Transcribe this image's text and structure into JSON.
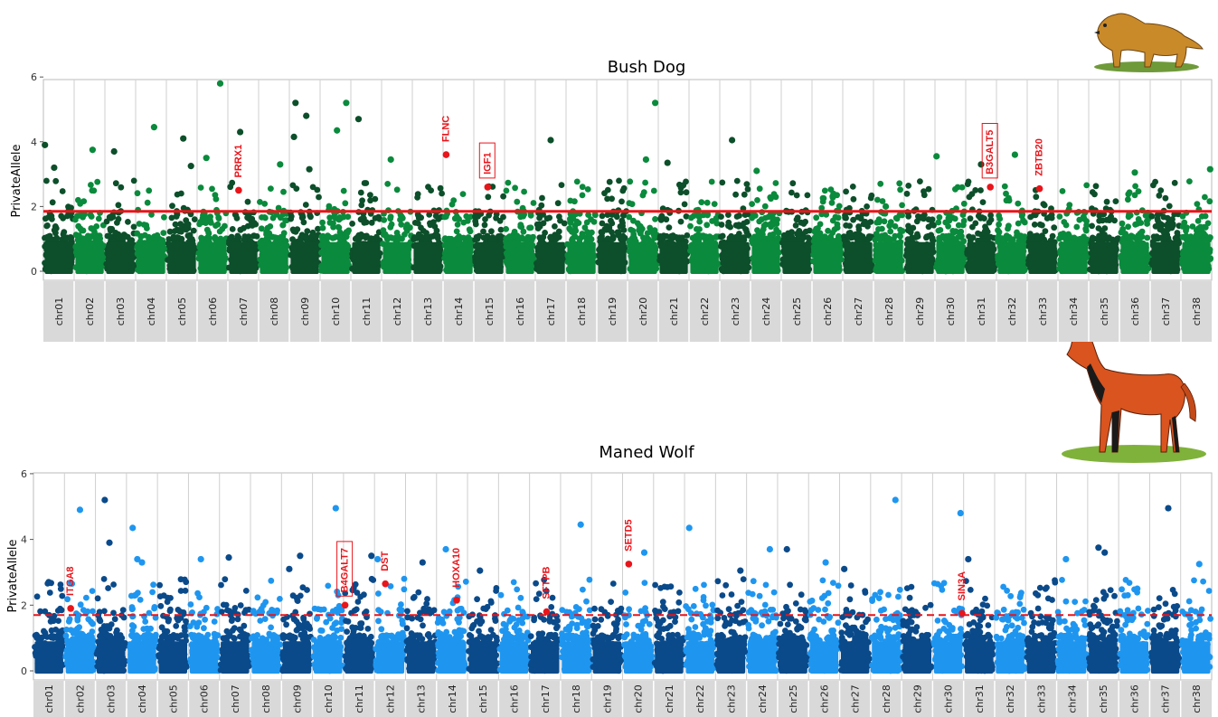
{
  "chart_data": [
    {
      "type": "scatter",
      "title": "Bush Dog",
      "ylabel": "PrivateAllele",
      "y_ticks": [
        "0",
        "2",
        "4",
        "6"
      ],
      "ylim": [
        0,
        6.2
      ],
      "threshold": 1.85,
      "threshold_style": "solid",
      "colors": [
        "#0c4f2a",
        "#0a8a3c"
      ],
      "chromosomes": [
        "chr01",
        "chr02",
        "chr03",
        "chr04",
        "chr05",
        "chr06",
        "chr07",
        "chr08",
        "chr09",
        "chr10",
        "chr11",
        "chr12",
        "chr13",
        "chr14",
        "chr15",
        "chr16",
        "chr17",
        "chr18",
        "chr19",
        "chr20",
        "chr21",
        "chr22",
        "chr23",
        "chr24",
        "chr25",
        "chr26",
        "chr27",
        "chr28",
        "chr29",
        "chr30",
        "chr31",
        "chr32",
        "chr33",
        "chr34",
        "chr35",
        "chr36",
        "chr37",
        "chr38"
      ],
      "top_points": [
        {
          "chr": 1,
          "pos": 0.05,
          "y": 3.9
        },
        {
          "chr": 1,
          "pos": 0.35,
          "y": 3.2
        },
        {
          "chr": 2,
          "pos": 0.6,
          "y": 3.75
        },
        {
          "chr": 3,
          "pos": 0.3,
          "y": 3.7
        },
        {
          "chr": 4,
          "pos": 0.6,
          "y": 4.45
        },
        {
          "chr": 5,
          "pos": 0.55,
          "y": 4.1
        },
        {
          "chr": 5,
          "pos": 0.8,
          "y": 3.25
        },
        {
          "chr": 6,
          "pos": 0.75,
          "y": 5.8
        },
        {
          "chr": 6,
          "pos": 0.3,
          "y": 3.5
        },
        {
          "chr": 7,
          "pos": 0.4,
          "y": 4.3
        },
        {
          "chr": 8,
          "pos": 0.7,
          "y": 3.3
        },
        {
          "chr": 9,
          "pos": 0.15,
          "y": 4.15
        },
        {
          "chr": 9,
          "pos": 0.2,
          "y": 5.2
        },
        {
          "chr": 9,
          "pos": 0.55,
          "y": 4.8
        },
        {
          "chr": 9,
          "pos": 0.65,
          "y": 3.15
        },
        {
          "chr": 10,
          "pos": 0.55,
          "y": 4.35
        },
        {
          "chr": 10,
          "pos": 0.85,
          "y": 5.2
        },
        {
          "chr": 11,
          "pos": 0.25,
          "y": 4.7
        },
        {
          "chr": 12,
          "pos": 0.3,
          "y": 3.45
        },
        {
          "chr": 17,
          "pos": 0.5,
          "y": 4.05
        },
        {
          "chr": 20,
          "pos": 0.6,
          "y": 3.45
        },
        {
          "chr": 20,
          "pos": 0.9,
          "y": 5.2
        },
        {
          "chr": 21,
          "pos": 0.3,
          "y": 3.35
        },
        {
          "chr": 23,
          "pos": 0.4,
          "y": 4.05
        },
        {
          "chr": 24,
          "pos": 0.2,
          "y": 3.1
        },
        {
          "chr": 28,
          "pos": 0.4,
          "y": 2.0
        },
        {
          "chr": 30,
          "pos": 0.05,
          "y": 3.55
        },
        {
          "chr": 31,
          "pos": 0.5,
          "y": 3.3
        },
        {
          "chr": 32,
          "pos": 0.6,
          "y": 3.6
        },
        {
          "chr": 36,
          "pos": 0.5,
          "y": 3.05
        },
        {
          "chr": 38,
          "pos": 0.95,
          "y": 3.15
        }
      ],
      "highlighted": [
        {
          "gene": "PRRX1",
          "chr": 7,
          "pos": 0.35,
          "y": 2.5,
          "boxed": false
        },
        {
          "gene": "FLNC",
          "chr": 14,
          "pos": 0.1,
          "y": 3.6,
          "boxed": false
        },
        {
          "gene": "IGF1",
          "chr": 15,
          "pos": 0.45,
          "y": 2.6,
          "boxed": true
        },
        {
          "gene": "B3GALT5",
          "chr": 31,
          "pos": 0.8,
          "y": 2.6,
          "boxed": true
        },
        {
          "gene": "ZBTB20",
          "chr": 33,
          "pos": 0.4,
          "y": 2.55,
          "boxed": false
        }
      ],
      "highlight_color": "#e8151b"
    },
    {
      "type": "scatter",
      "title": "Maned Wolf",
      "ylabel": "PrivateAllele",
      "y_ticks": [
        "0",
        "2",
        "4",
        "6"
      ],
      "ylim": [
        0,
        6.3
      ],
      "threshold": 1.7,
      "threshold_style": "dashed",
      "colors": [
        "#0a4a8a",
        "#1e96f0"
      ],
      "chromosomes": [
        "chr01",
        "chr02",
        "chr03",
        "chr04",
        "chr05",
        "chr06",
        "chr07",
        "chr08",
        "chr09",
        "chr10",
        "chr11",
        "chr12",
        "chr13",
        "chr14",
        "chr15",
        "chr16",
        "chr17",
        "chr18",
        "chr19",
        "chr20",
        "chr21",
        "chr22",
        "chr23",
        "chr24",
        "chr25",
        "chr26",
        "chr27",
        "chr28",
        "chr29",
        "chr30",
        "chr31",
        "chr32",
        "chr33",
        "chr34",
        "chr35",
        "chr36",
        "chr37",
        "chr38"
      ],
      "top_points": [
        {
          "chr": 2,
          "pos": 0.5,
          "y": 4.9
        },
        {
          "chr": 3,
          "pos": 0.3,
          "y": 5.2
        },
        {
          "chr": 3,
          "pos": 0.45,
          "y": 3.9
        },
        {
          "chr": 4,
          "pos": 0.2,
          "y": 4.35
        },
        {
          "chr": 4,
          "pos": 0.35,
          "y": 3.4
        },
        {
          "chr": 4,
          "pos": 0.5,
          "y": 3.3
        },
        {
          "chr": 6,
          "pos": 0.4,
          "y": 3.4
        },
        {
          "chr": 7,
          "pos": 0.3,
          "y": 3.45
        },
        {
          "chr": 9,
          "pos": 0.25,
          "y": 3.1
        },
        {
          "chr": 9,
          "pos": 0.6,
          "y": 3.5
        },
        {
          "chr": 10,
          "pos": 0.75,
          "y": 4.95
        },
        {
          "chr": 11,
          "pos": 0.9,
          "y": 3.5
        },
        {
          "chr": 12,
          "pos": 0.1,
          "y": 3.4
        },
        {
          "chr": 13,
          "pos": 0.55,
          "y": 3.3
        },
        {
          "chr": 14,
          "pos": 0.3,
          "y": 3.7
        },
        {
          "chr": 15,
          "pos": 0.4,
          "y": 3.05
        },
        {
          "chr": 18,
          "pos": 0.65,
          "y": 4.45
        },
        {
          "chr": 20,
          "pos": 0.7,
          "y": 3.6
        },
        {
          "chr": 22,
          "pos": 0.15,
          "y": 4.35
        },
        {
          "chr": 23,
          "pos": 0.8,
          "y": 3.05
        },
        {
          "chr": 24,
          "pos": 0.75,
          "y": 3.7
        },
        {
          "chr": 25,
          "pos": 0.3,
          "y": 3.7
        },
        {
          "chr": 26,
          "pos": 0.55,
          "y": 3.3
        },
        {
          "chr": 27,
          "pos": 0.15,
          "y": 3.1
        },
        {
          "chr": 28,
          "pos": 0.8,
          "y": 5.2
        },
        {
          "chr": 30,
          "pos": 0.9,
          "y": 4.8
        },
        {
          "chr": 31,
          "pos": 0.15,
          "y": 3.4
        },
        {
          "chr": 34,
          "pos": 0.3,
          "y": 3.4
        },
        {
          "chr": 35,
          "pos": 0.35,
          "y": 3.75
        },
        {
          "chr": 35,
          "pos": 0.55,
          "y": 3.6
        },
        {
          "chr": 36,
          "pos": 0.6,
          "y": 2.5
        },
        {
          "chr": 37,
          "pos": 0.6,
          "y": 4.95
        },
        {
          "chr": 38,
          "pos": 0.6,
          "y": 3.25
        }
      ],
      "highlighted": [
        {
          "gene": "ITGA8",
          "chr": 2,
          "pos": 0.2,
          "y": 1.9,
          "boxed": false
        },
        {
          "gene": "B4GALT7",
          "chr": 11,
          "pos": 0.05,
          "y": 2.0,
          "boxed": true
        },
        {
          "gene": "DST",
          "chr": 12,
          "pos": 0.35,
          "y": 2.65,
          "boxed": false
        },
        {
          "gene": "HOXA10",
          "chr": 14,
          "pos": 0.65,
          "y": 2.15,
          "boxed": false
        },
        {
          "gene": "SFTPB",
          "chr": 17,
          "pos": 0.55,
          "y": 1.8,
          "boxed": false
        },
        {
          "gene": "SETD5",
          "chr": 20,
          "pos": 0.2,
          "y": 3.25,
          "boxed": false
        },
        {
          "gene": "SIN3A",
          "chr": 30,
          "pos": 0.95,
          "y": 1.75,
          "boxed": false
        }
      ],
      "highlight_color": "#e8151b"
    }
  ],
  "images": [
    {
      "name": "bush-dog-illustration"
    },
    {
      "name": "maned-wolf-illustration"
    }
  ]
}
